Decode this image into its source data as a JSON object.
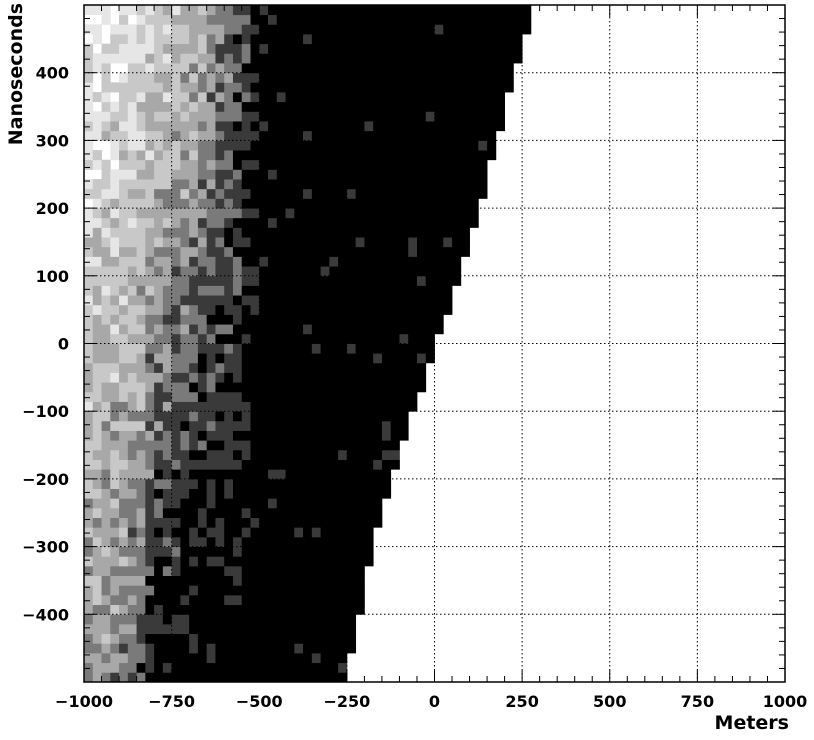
{
  "chart_data": {
    "type": "heatmap",
    "title": "",
    "xlabel": "Meters",
    "ylabel": "Nanoseconds",
    "xlim": [
      -1000,
      1000
    ],
    "ylim": [
      -500,
      500
    ],
    "x_ticks": [
      -1000,
      -750,
      -500,
      -250,
      0,
      250,
      500,
      750,
      1000
    ],
    "y_ticks": [
      -400,
      -300,
      -200,
      -100,
      0,
      100,
      200,
      300,
      400
    ],
    "x_tick_labels": [
      "−1000",
      "−750",
      "−500",
      "−250",
      "0",
      "250",
      "500",
      "750",
      "1000"
    ],
    "y_tick_labels": [
      "−400",
      "−300",
      "−200",
      "−100",
      "0",
      "100",
      "200",
      "300",
      "400"
    ],
    "grid": true,
    "boundary_edge": {
      "description_of_values": "right edge of dense region, meters, at given nanoseconds",
      "time_ns": [
        -500,
        -400,
        -300,
        -200,
        -100,
        0,
        100,
        200,
        300,
        400,
        500
      ],
      "edge_m": [
        -260,
        -215,
        -175,
        -120,
        -60,
        5,
        70,
        130,
        180,
        230,
        285
      ]
    },
    "density_profile": {
      "x_m": [
        -1000,
        -950,
        -900,
        -850,
        -800,
        -750,
        -700,
        -650,
        -600,
        -550,
        -500,
        -450,
        -400,
        -350,
        -300,
        -250,
        -200,
        -150,
        -100,
        -50,
        0
      ],
      "count_level_bottom": [
        0.5,
        0.5,
        0.55,
        0.65,
        0.9,
        0.95,
        1,
        1,
        1,
        1,
        1,
        1,
        1,
        1,
        1,
        1,
        1,
        1,
        1,
        1,
        1
      ],
      "count_level_top": [
        0.05,
        0.08,
        0.1,
        0.12,
        0.15,
        0.2,
        0.3,
        0.4,
        0.55,
        0.7,
        0.95,
        1,
        1,
        1,
        1,
        1,
        1,
        1,
        1,
        1,
        1
      ]
    },
    "bins": {
      "x": 80,
      "y": 70
    }
  }
}
